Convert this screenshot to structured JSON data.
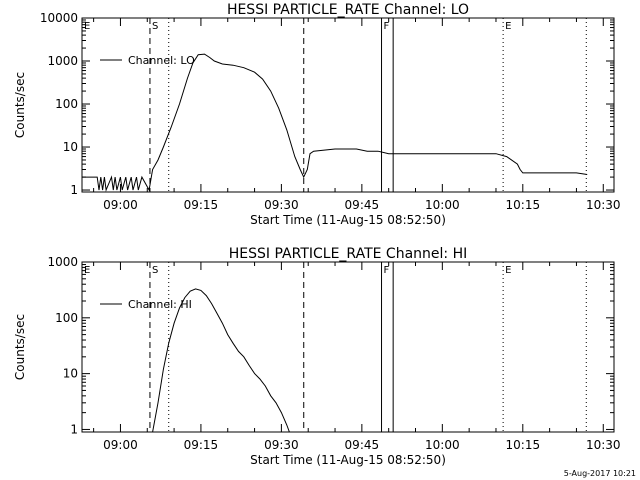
{
  "footer_timestamp": "5-Aug-2017 10:21",
  "chart_data": [
    {
      "type": "line",
      "title": "HESSI PARTICLE_RATE Channel: LO",
      "xlabel": "Start Time (11-Aug-15 08:52:50)",
      "ylabel": "Counts/sec",
      "y_scale": "log",
      "xlim": [
        "08:52:50",
        "10:32:00"
      ],
      "ylim": [
        0.9,
        10000
      ],
      "x_ticks": [
        "09:00",
        "09:15",
        "09:30",
        "09:45",
        "10:00",
        "10:15",
        "10:30"
      ],
      "y_ticks": [
        "1",
        "10",
        "100",
        "1000",
        "10000"
      ],
      "legend": {
        "label": "Channel: LO",
        "position": "top-left"
      },
      "markers": [
        {
          "label": "E",
          "time": "08:52:50",
          "style": "dotted"
        },
        {
          "label": "S",
          "time": "09:05:30",
          "style": "dashed"
        },
        {
          "time": "09:09:00",
          "style": "dotted"
        },
        {
          "time": "09:34:10",
          "style": "dashed"
        },
        {
          "label": "F",
          "time": "09:48:40",
          "style": "solid"
        },
        {
          "time": "09:50:50",
          "style": "solid"
        },
        {
          "label": "E",
          "time": "10:11:20",
          "style": "dotted"
        },
        {
          "time": "10:26:50",
          "style": "dotted"
        }
      ],
      "series": [
        {
          "name": "Channel: LO",
          "points": [
            [
              "08:52:50",
              2
            ],
            [
              "08:55:40",
              2
            ],
            [
              "08:56:00",
              1
            ],
            [
              "08:56:20",
              2
            ],
            [
              "08:56:40",
              1
            ],
            [
              "08:57:00",
              2
            ],
            [
              "08:57:20",
              1
            ],
            [
              "08:58:20",
              2
            ],
            [
              "08:58:40",
              1
            ],
            [
              "08:59:00",
              2
            ],
            [
              "08:59:20",
              1
            ],
            [
              "09:00:00",
              2
            ],
            [
              "09:00:20",
              1
            ],
            [
              "09:01:00",
              2
            ],
            [
              "09:01:20",
              1
            ],
            [
              "09:02:00",
              2
            ],
            [
              "09:02:20",
              1
            ],
            [
              "09:03:00",
              2
            ],
            [
              "09:03:20",
              1
            ],
            [
              "09:04:00",
              2
            ],
            [
              "09:05:20",
              1
            ],
            [
              "09:06:00",
              3
            ],
            [
              "09:07:00",
              5
            ],
            [
              "09:08:00",
              10
            ],
            [
              "09:09:30",
              30
            ],
            [
              "09:11:00",
              100
            ],
            [
              "09:12:30",
              400
            ],
            [
              "09:13:30",
              900
            ],
            [
              "09:14:30",
              1400
            ],
            [
              "09:15:40",
              1450
            ],
            [
              "09:16:40",
              1200
            ],
            [
              "09:17:30",
              1000
            ],
            [
              "09:19:00",
              850
            ],
            [
              "09:21:00",
              800
            ],
            [
              "09:23:00",
              700
            ],
            [
              "09:25:00",
              550
            ],
            [
              "09:26:30",
              380
            ],
            [
              "09:28:00",
              200
            ],
            [
              "09:29:30",
              80
            ],
            [
              "09:31:00",
              25
            ],
            [
              "09:32:30",
              6
            ],
            [
              "09:33:30",
              3
            ],
            [
              "09:34:10",
              2
            ],
            [
              "09:34:50",
              3
            ],
            [
              "09:35:20",
              7
            ],
            [
              "09:36:00",
              8
            ],
            [
              "09:40:00",
              9
            ],
            [
              "09:44:00",
              9
            ],
            [
              "09:46:00",
              8
            ],
            [
              "09:48:00",
              8
            ],
            [
              "09:50:00",
              7
            ],
            [
              "09:53:00",
              7
            ],
            [
              "09:56:00",
              7
            ],
            [
              "10:00:00",
              7
            ],
            [
              "10:04:00",
              7
            ],
            [
              "10:08:00",
              7
            ],
            [
              "10:10:00",
              7
            ],
            [
              "10:12:00",
              6
            ],
            [
              "10:14:00",
              4
            ],
            [
              "10:14:30",
              3
            ],
            [
              "10:15:00",
              2.5
            ],
            [
              "10:17:00",
              2.5
            ],
            [
              "10:20:00",
              2.5
            ],
            [
              "10:23:00",
              2.5
            ],
            [
              "10:25:00",
              2.5
            ],
            [
              "10:27:00",
              2.3
            ]
          ]
        }
      ]
    },
    {
      "type": "line",
      "title": "HESSI PARTICLE_RATE Channel: HI",
      "xlabel": "Start Time (11-Aug-15 08:52:50)",
      "ylabel": "Counts/sec",
      "y_scale": "log",
      "xlim": [
        "08:52:50",
        "10:32:00"
      ],
      "ylim": [
        0.9,
        1000
      ],
      "x_ticks": [
        "09:00",
        "09:15",
        "09:30",
        "09:45",
        "10:00",
        "10:15",
        "10:30"
      ],
      "y_ticks": [
        "1",
        "10",
        "100",
        "1000"
      ],
      "legend": {
        "label": "Channel: HI",
        "position": "top-left"
      },
      "markers": [
        {
          "label": "E",
          "time": "08:52:50",
          "style": "dotted"
        },
        {
          "label": "S",
          "time": "09:05:30",
          "style": "dashed"
        },
        {
          "time": "09:09:00",
          "style": "dotted"
        },
        {
          "time": "09:34:10",
          "style": "dashed"
        },
        {
          "label": "F",
          "time": "09:48:40",
          "style": "solid"
        },
        {
          "time": "09:50:50",
          "style": "solid"
        },
        {
          "label": "E",
          "time": "10:11:20",
          "style": "dotted"
        },
        {
          "time": "10:26:50",
          "style": "dotted"
        }
      ],
      "series": [
        {
          "name": "Channel: HI",
          "points": [
            [
              "09:06:00",
              0.9
            ],
            [
              "09:07:00",
              3
            ],
            [
              "09:08:00",
              12
            ],
            [
              "09:09:00",
              35
            ],
            [
              "09:10:00",
              80
            ],
            [
              "09:11:00",
              150
            ],
            [
              "09:12:00",
              230
            ],
            [
              "09:13:00",
              300
            ],
            [
              "09:14:00",
              330
            ],
            [
              "09:15:00",
              310
            ],
            [
              "09:16:00",
              250
            ],
            [
              "09:17:00",
              180
            ],
            [
              "09:18:00",
              120
            ],
            [
              "09:19:00",
              80
            ],
            [
              "09:20:00",
              50
            ],
            [
              "09:21:00",
              35
            ],
            [
              "09:22:00",
              25
            ],
            [
              "09:23:00",
              20
            ],
            [
              "09:24:00",
              14
            ],
            [
              "09:25:00",
              10
            ],
            [
              "09:26:00",
              8
            ],
            [
              "09:27:00",
              6
            ],
            [
              "09:28:00",
              4
            ],
            [
              "09:29:00",
              3
            ],
            [
              "09:30:00",
              2
            ],
            [
              "09:31:00",
              1.2
            ],
            [
              "09:31:30",
              0.9
            ]
          ]
        }
      ]
    }
  ]
}
